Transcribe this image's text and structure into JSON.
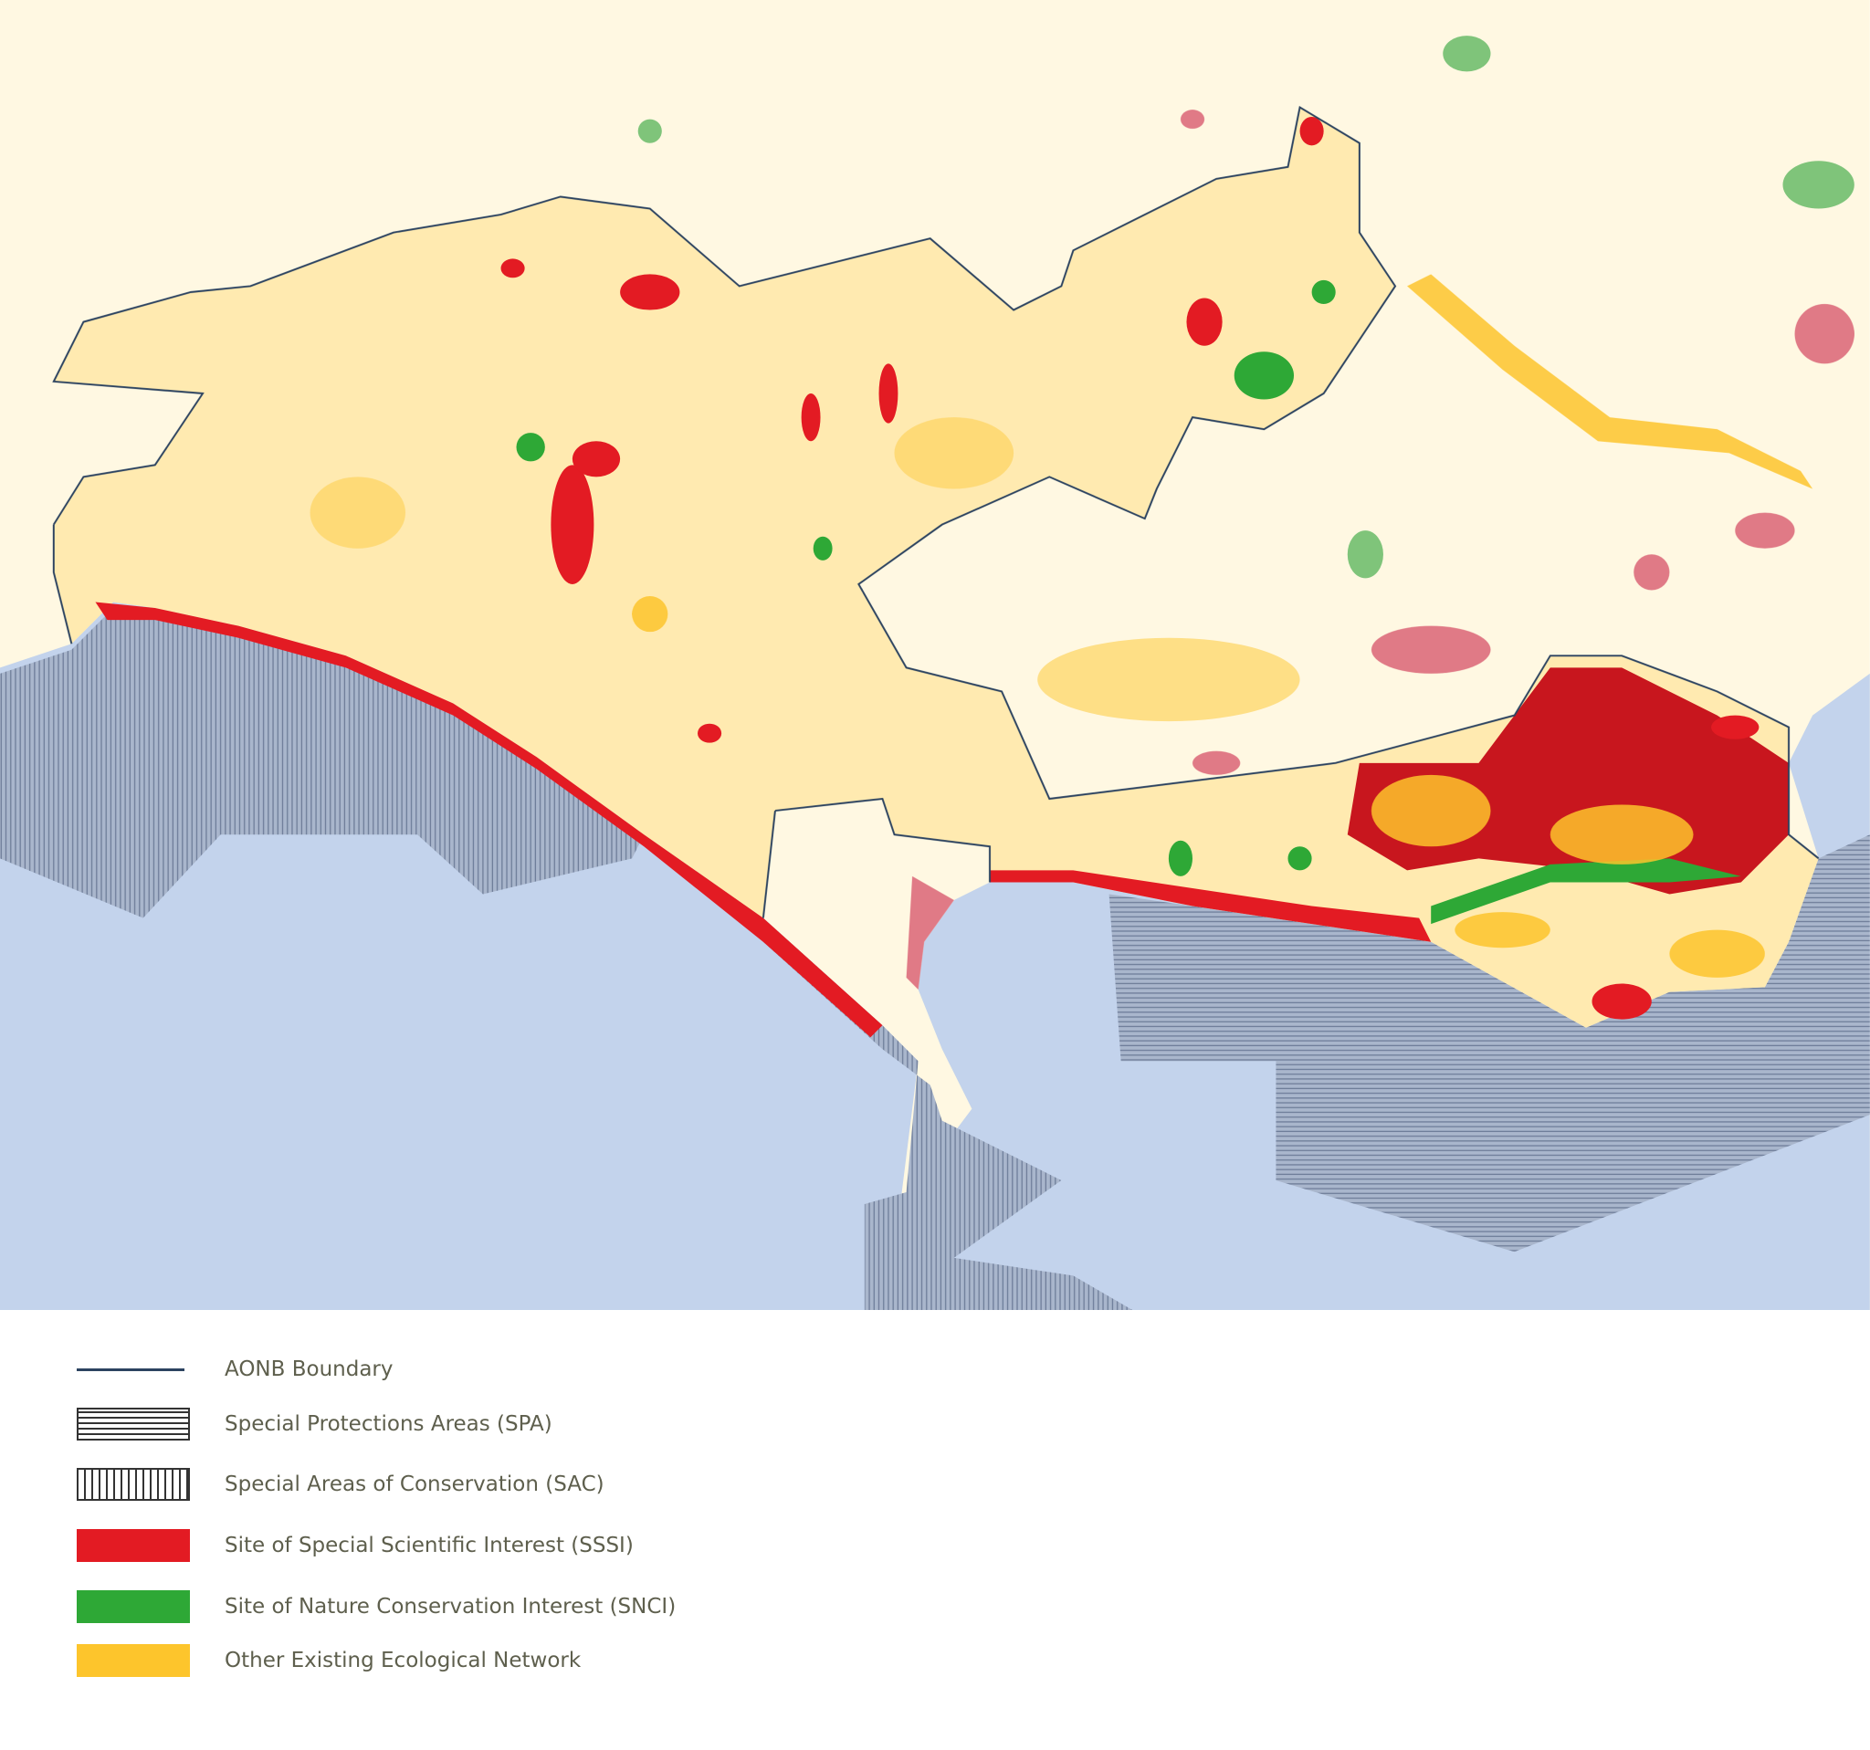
{
  "legend": {
    "items": [
      {
        "label": "AONB Boundary",
        "symbol": "line",
        "color": "#2c4360"
      },
      {
        "label": "Special Protections Areas (SPA)",
        "symbol": "horizontal-hatch",
        "color": "#333333"
      },
      {
        "label": "Special Areas of Conservation (SAC)",
        "symbol": "vertical-hatch",
        "color": "#333333"
      },
      {
        "label": "Site of Special Scientific Interest (SSSI)",
        "symbol": "fill",
        "color": "#e31b23"
      },
      {
        "label": "Site of Nature Conservation Interest (SNCI)",
        "symbol": "fill",
        "color": "#2ea836"
      },
      {
        "label": "Other Existing Ecological Network",
        "symbol": "fill",
        "color": "#fdc52c"
      }
    ]
  },
  "map": {
    "colors": {
      "sea": "#c3d3ec",
      "land": "#fff8e2",
      "aonb_land": "#ffeeb8",
      "urban_pink": "#e07a86"
    }
  }
}
